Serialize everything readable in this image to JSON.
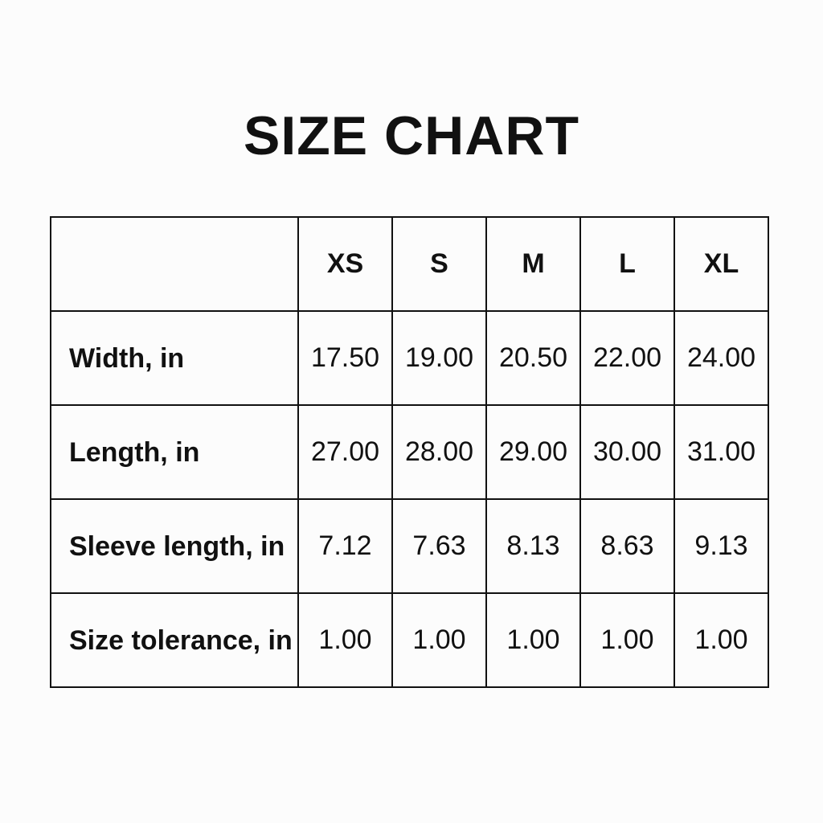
{
  "title": "SIZE CHART",
  "columns": [
    "XS",
    "S",
    "M",
    "L",
    "XL"
  ],
  "rows": [
    {
      "label": "Width, in",
      "values": [
        "17.50",
        "19.00",
        "20.50",
        "22.00",
        "24.00"
      ]
    },
    {
      "label": "Length, in",
      "values": [
        "27.00",
        "28.00",
        "29.00",
        "30.00",
        "31.00"
      ]
    },
    {
      "label": "Sleeve length, in",
      "values": [
        "7.12",
        "7.63",
        "8.13",
        "8.63",
        "9.13"
      ]
    },
    {
      "label": "Size tolerance, in",
      "values": [
        "1.00",
        "1.00",
        "1.00",
        "1.00",
        "1.00"
      ]
    }
  ]
}
